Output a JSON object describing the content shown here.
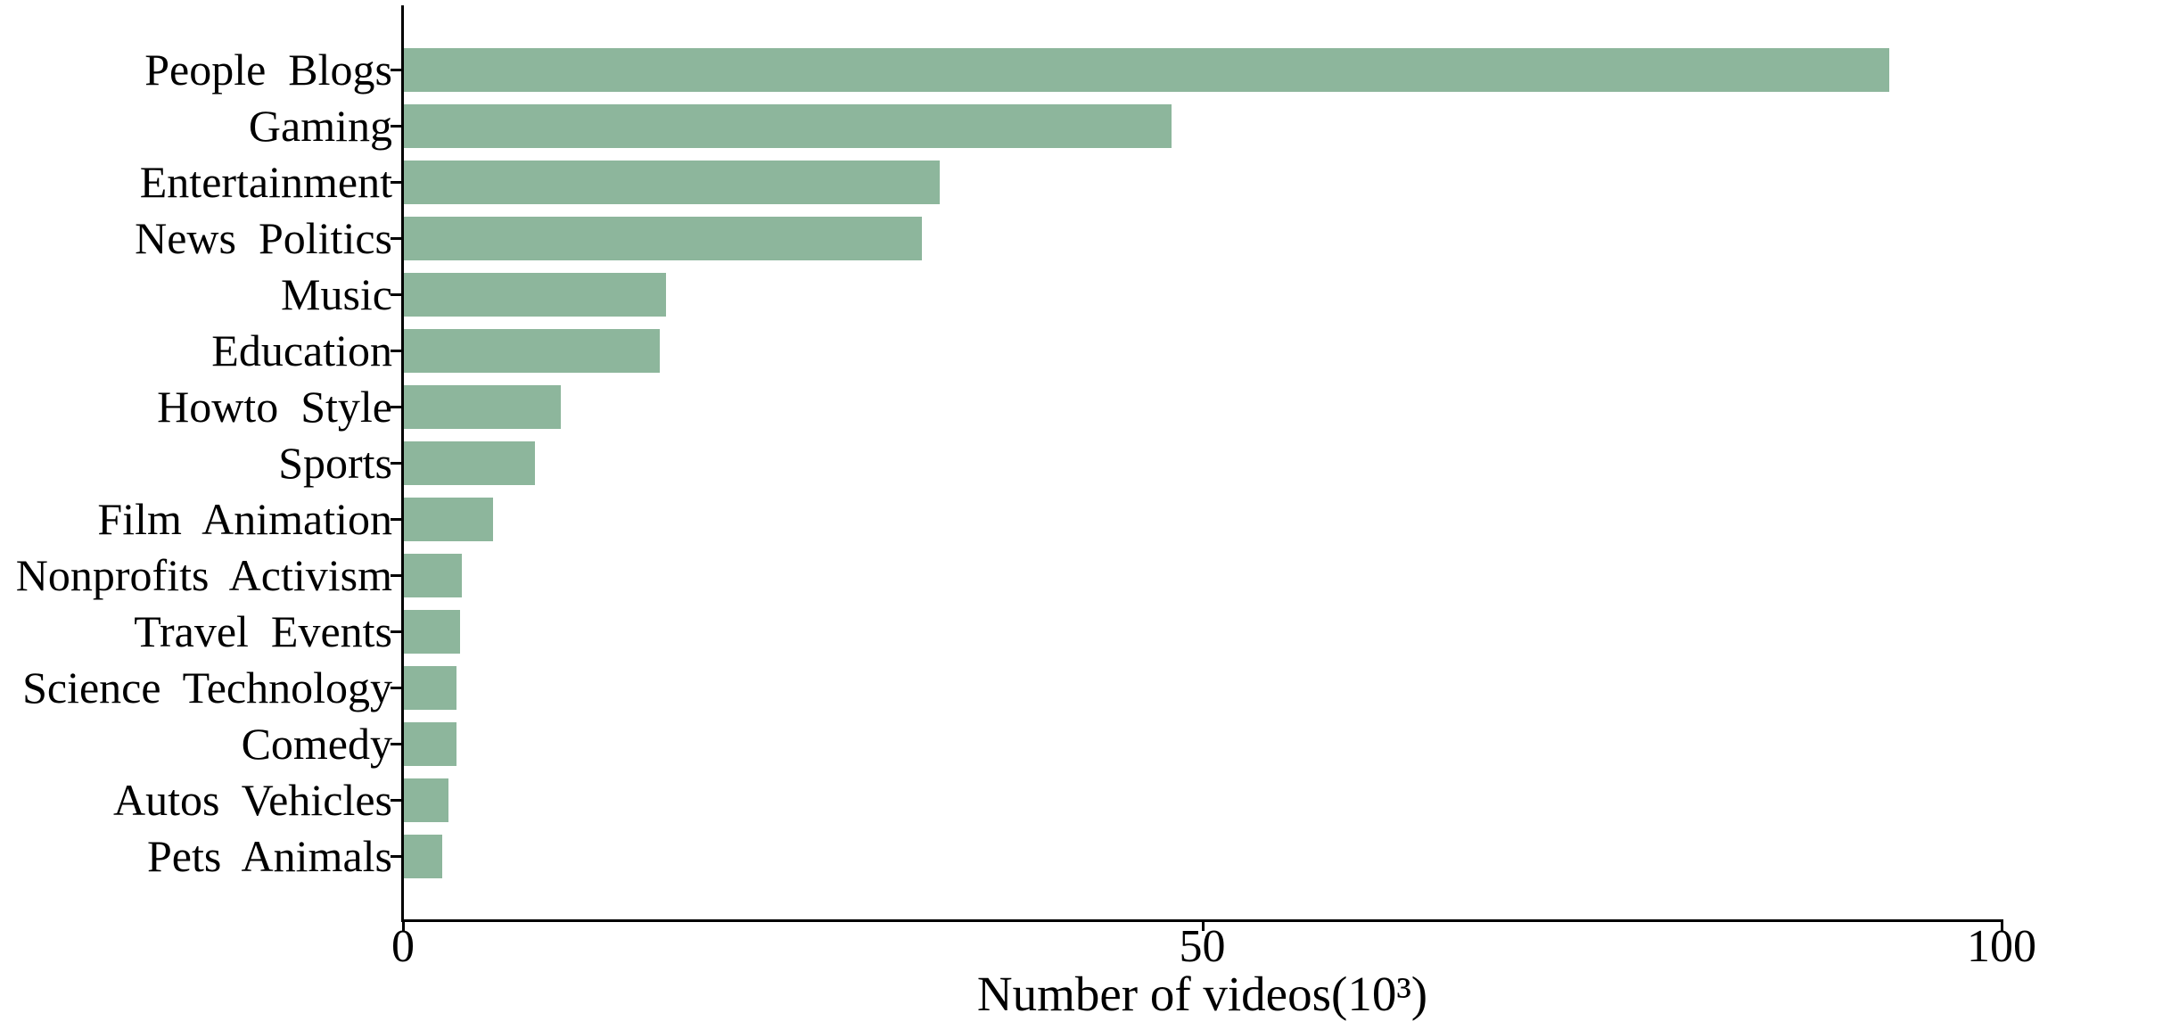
{
  "chart_data": {
    "type": "bar",
    "orientation": "horizontal",
    "title": "",
    "xlabel": "Number of videos(10³)",
    "ylabel": "",
    "xlim": [
      0,
      100
    ],
    "xticks": [
      0,
      50,
      100
    ],
    "xtick_labels": [
      "0",
      "50",
      "100"
    ],
    "grid": false,
    "legend": "none",
    "bar_color": "#8db69c",
    "axis_color": "#000000",
    "background_color": "#ffffff",
    "categories": [
      "People  Blogs",
      "Gaming",
      "Entertainment",
      "News  Politics",
      "Music",
      "Education",
      "Howto  Style",
      "Sports",
      "Film  Animation",
      "Nonprofits  Activism",
      "Travel  Events",
      "Science  Technology",
      "Comedy",
      "Autos  Vehicles",
      "Pets  Animals"
    ],
    "values": [
      92.9,
      48.0,
      33.5,
      32.4,
      16.4,
      16.0,
      9.8,
      8.2,
      5.6,
      3.6,
      3.5,
      3.3,
      3.3,
      2.8,
      2.4
    ]
  }
}
